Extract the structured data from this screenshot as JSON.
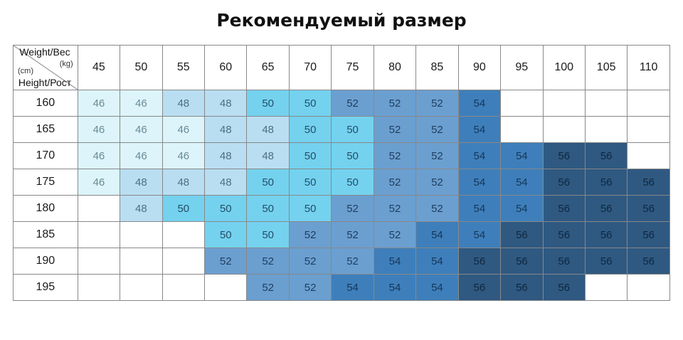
{
  "title": "Рекомендуемый размер",
  "corner": {
    "weight_label": "Weight/Вес",
    "weight_unit": "(kg)",
    "height_unit": "(cm)",
    "height_label": "Height/Рост"
  },
  "weights": [
    "45",
    "50",
    "55",
    "60",
    "65",
    "70",
    "75",
    "80",
    "85",
    "90",
    "95",
    "100",
    "105",
    "110"
  ],
  "rows": [
    {
      "height": "160",
      "sizes": [
        "46",
        "46",
        "48",
        "48",
        "50",
        "50",
        "52",
        "52",
        "52",
        "54",
        "",
        "",
        "",
        ""
      ]
    },
    {
      "height": "165",
      "sizes": [
        "46",
        "46",
        "46",
        "48",
        "48",
        "50",
        "50",
        "52",
        "52",
        "54",
        "",
        "",
        "",
        ""
      ]
    },
    {
      "height": "170",
      "sizes": [
        "46",
        "46",
        "46",
        "48",
        "48",
        "50",
        "50",
        "52",
        "52",
        "54",
        "54",
        "56",
        "56",
        ""
      ]
    },
    {
      "height": "175",
      "sizes": [
        "46",
        "48",
        "48",
        "48",
        "50",
        "50",
        "50",
        "52",
        "52",
        "54",
        "54",
        "56",
        "56",
        "56"
      ]
    },
    {
      "height": "180",
      "sizes": [
        "",
        "48",
        "50",
        "50",
        "50",
        "50",
        "52",
        "52",
        "52",
        "54",
        "54",
        "56",
        "56",
        "56"
      ]
    },
    {
      "height": "185",
      "sizes": [
        "",
        "",
        "",
        "50",
        "50",
        "52",
        "52",
        "52",
        "54",
        "54",
        "56",
        "56",
        "56",
        "56"
      ]
    },
    {
      "height": "190",
      "sizes": [
        "",
        "",
        "",
        "52",
        "52",
        "52",
        "52",
        "54",
        "54",
        "56",
        "56",
        "56",
        "56",
        "56"
      ]
    },
    {
      "height": "195",
      "sizes": [
        "",
        "",
        "",
        "",
        "52",
        "52",
        "54",
        "54",
        "54",
        "56",
        "56",
        "56",
        "",
        ""
      ]
    }
  ],
  "size_colors": {
    "46": "#dcf4fa",
    "48": "#b9def2",
    "50": "#74d2ef",
    "52": "#6b9fd0",
    "54": "#3e7fbb",
    "56": "#2f5981"
  }
}
